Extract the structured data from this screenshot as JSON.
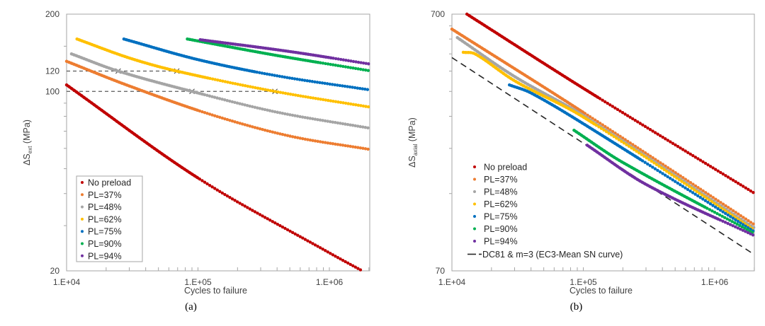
{
  "chart_data": [
    {
      "type": "scatter",
      "panel_label": "(a)",
      "title": "",
      "xlabel": "Cycles to failure",
      "ylabel_main": "ΔS",
      "ylabel_sub": "ext",
      "ylabel_unit": " (MPa)",
      "xscale": "log",
      "yscale": "log",
      "xlim": [
        10000,
        2000000
      ],
      "ylim": [
        20,
        200
      ],
      "x_tick_labels": [
        {
          "value": 10000,
          "label": "1.E+04"
        },
        {
          "value": 100000,
          "label": "1.E+05"
        },
        {
          "value": 1000000,
          "label": "1.E+06"
        }
      ],
      "y_tick_labels": [
        {
          "value": 200,
          "label": "200"
        },
        {
          "value": 120,
          "label": "120"
        },
        {
          "value": 100,
          "label": "100"
        },
        {
          "value": 20,
          "label": "20"
        }
      ],
      "y_minor_ticks": [
        30,
        40,
        50,
        60,
        70,
        80,
        90,
        150
      ],
      "grid": false,
      "legend": {
        "placement": "bottom-left",
        "boxed": true
      },
      "series": [
        {
          "name": "No preload",
          "color": "#C00000",
          "points": [
            [
              10000,
              106
            ],
            [
              100000,
              46
            ],
            [
              1000000,
              23.5
            ],
            [
              1780000,
              20
            ]
          ]
        },
        {
          "name": "PL=37%",
          "color": "#ED7D31",
          "points": [
            [
              10000,
              131
            ],
            [
              30000,
              105
            ],
            [
              128000,
              81
            ],
            [
              500000,
              67
            ],
            [
              2000000,
              59.5
            ]
          ]
        },
        {
          "name": "PL=48%",
          "color": "#A5A5A5",
          "points": [
            [
              10900,
              140
            ],
            [
              24700,
              120
            ],
            [
              90000,
              100
            ],
            [
              400000,
              83
            ],
            [
              2000000,
              72
            ]
          ]
        },
        {
          "name": "PL=62%",
          "color": "#FFC000",
          "points": [
            [
              12000,
              160
            ],
            [
              30000,
              135
            ],
            [
              69000,
              120
            ],
            [
              385000,
              100
            ],
            [
              2000000,
              87
            ]
          ]
        },
        {
          "name": "PL=75%",
          "color": "#0070C0",
          "points": [
            [
              27300,
              160
            ],
            [
              100000,
              133
            ],
            [
              400000,
              115
            ],
            [
              2000000,
              101.5
            ]
          ]
        },
        {
          "name": "PL=90%",
          "color": "#00B050",
          "points": [
            [
              83000,
              160
            ],
            [
              400000,
              138
            ],
            [
              2000000,
              120.5
            ]
          ]
        },
        {
          "name": "PL=94%",
          "color": "#7030A0",
          "points": [
            [
              104000,
              159
            ],
            [
              500000,
              143
            ],
            [
              2000000,
              128
            ]
          ]
        }
      ],
      "reference_lines": [
        {
          "name": "120 MPa level",
          "y": 120,
          "x_from": 10000,
          "x_to": 69000,
          "style": "dashed",
          "color": "#595959",
          "markers": [
            [
              24700,
              120
            ],
            [
              69000,
              120
            ]
          ]
        },
        {
          "name": "100 MPa level",
          "y": 100,
          "x_from": 10000,
          "x_to": 385000,
          "style": "dashed",
          "color": "#595959",
          "markers": [
            [
              90000,
              100
            ],
            [
              385000,
              100
            ]
          ]
        }
      ]
    },
    {
      "type": "scatter",
      "panel_label": "(b)",
      "title": "",
      "xlabel": "Cycles to failure",
      "ylabel_main": "ΔS",
      "ylabel_sub": "axial",
      "ylabel_unit": " (MPa)",
      "xscale": "log",
      "yscale": "log",
      "xlim": [
        10000,
        2000000
      ],
      "ylim": [
        70,
        700
      ],
      "x_tick_labels": [
        {
          "value": 10000,
          "label": "1.E+04"
        },
        {
          "value": 100000,
          "label": "1.E+05"
        },
        {
          "value": 1000000,
          "label": "1.E+06"
        }
      ],
      "y_tick_labels": [
        {
          "value": 700,
          "label": "700"
        },
        {
          "value": 70,
          "label": "70"
        }
      ],
      "y_minor_ticks": [
        140,
        210,
        280,
        350,
        420,
        490,
        560,
        630
      ],
      "grid": false,
      "legend": {
        "placement": "bottom-left",
        "boxed": false
      },
      "series": [
        {
          "name": "No preload",
          "color": "#C00000",
          "points": [
            [
              13000,
              700
            ],
            [
              100000,
              360
            ],
            [
              1980000,
              141
            ]
          ]
        },
        {
          "name": "PL=37%",
          "color": "#ED7D31",
          "points": [
            [
              10000,
              612
            ],
            [
              100000,
              290
            ],
            [
              2000000,
              106
            ]
          ]
        },
        {
          "name": "PL=48%",
          "color": "#A5A5A5",
          "points": [
            [
              11000,
              567
            ],
            [
              30000,
              400
            ],
            [
              100000,
              282
            ],
            [
              2000000,
              103
            ]
          ]
        },
        {
          "name": "PL=62%",
          "color": "#FFC000",
          "points": [
            [
              12200,
              497
            ],
            [
              15000,
              490
            ],
            [
              30000,
              385
            ],
            [
              100000,
              278
            ],
            [
              2000000,
              101
            ]
          ]
        },
        {
          "name": "PL=75%",
          "color": "#0070C0",
          "points": [
            [
              27400,
              371
            ],
            [
              40000,
              345
            ],
            [
              100000,
              262
            ],
            [
              2000000,
              99.5
            ]
          ]
        },
        {
          "name": "PL=90%",
          "color": "#00B050",
          "points": [
            [
              85000,
              247
            ],
            [
              200000,
              185
            ],
            [
              2000000,
              98
            ]
          ]
        },
        {
          "name": "PL=94%",
          "color": "#7030A0",
          "points": [
            [
              107000,
              216
            ],
            [
              300000,
              152
            ],
            [
              2000000,
              96
            ]
          ]
        }
      ],
      "reference_lines": [
        {
          "name": "DC81 & m=3 (EC3-Mean SN curve)",
          "legend_label": "DC81 & m=3 (EC3-Mean SN curve)",
          "style": "dashed",
          "color": "#262626",
          "points": [
            [
              10000,
              474
            ],
            [
              2000000,
              81
            ]
          ]
        }
      ]
    }
  ]
}
